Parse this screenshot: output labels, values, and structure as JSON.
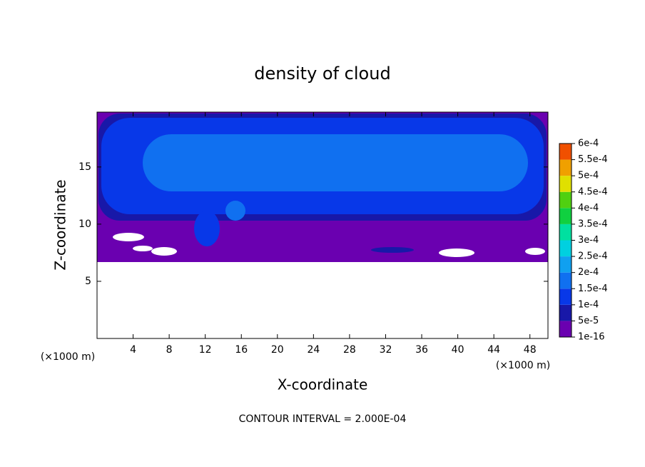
{
  "chart_data": {
    "type": "contour",
    "title": "density of cloud",
    "x_label": "X-coordinate",
    "y_label": "Z-coordinate",
    "x_unit": "(×1000 m)",
    "footer": "CONTOUR INTERVAL = 2.000E-04",
    "xlim": [
      0,
      50
    ],
    "xticks": [
      4,
      8,
      12,
      16,
      20,
      24,
      28,
      32,
      36,
      40,
      44,
      48
    ],
    "ylim": [
      0,
      19.8
    ],
    "yticks": [
      5,
      10,
      15
    ],
    "colorbar": {
      "levels": [
        {
          "value": 1e-16,
          "label": "1e-16"
        },
        {
          "value": 5e-05,
          "label": "5e-5"
        },
        {
          "value": 0.0001,
          "label": "1e-4"
        },
        {
          "value": 0.00015,
          "label": "1.5e-4"
        },
        {
          "value": 0.0002,
          "label": "2e-4"
        },
        {
          "value": 0.00025,
          "label": "2.5e-4"
        },
        {
          "value": 0.0003,
          "label": "3e-4"
        },
        {
          "value": 0.00035,
          "label": "3.5e-4"
        },
        {
          "value": 0.0004,
          "label": "4e-4"
        },
        {
          "value": 0.00045,
          "label": "4.5e-4"
        },
        {
          "value": 0.0005,
          "label": "5e-4"
        },
        {
          "value": 0.00055,
          "label": "5.5e-4"
        },
        {
          "value": 0.0006,
          "label": "6e-4"
        }
      ],
      "colors": [
        "#6a00b0",
        "#1818a8",
        "#0838e8",
        "#1070f0",
        "#10a0f0",
        "#00d0e0",
        "#00e0a0",
        "#10d040",
        "#50d010",
        "#e0e000",
        "#f0a000",
        "#f05000",
        "#f01010",
        "#f08080"
      ]
    }
  }
}
